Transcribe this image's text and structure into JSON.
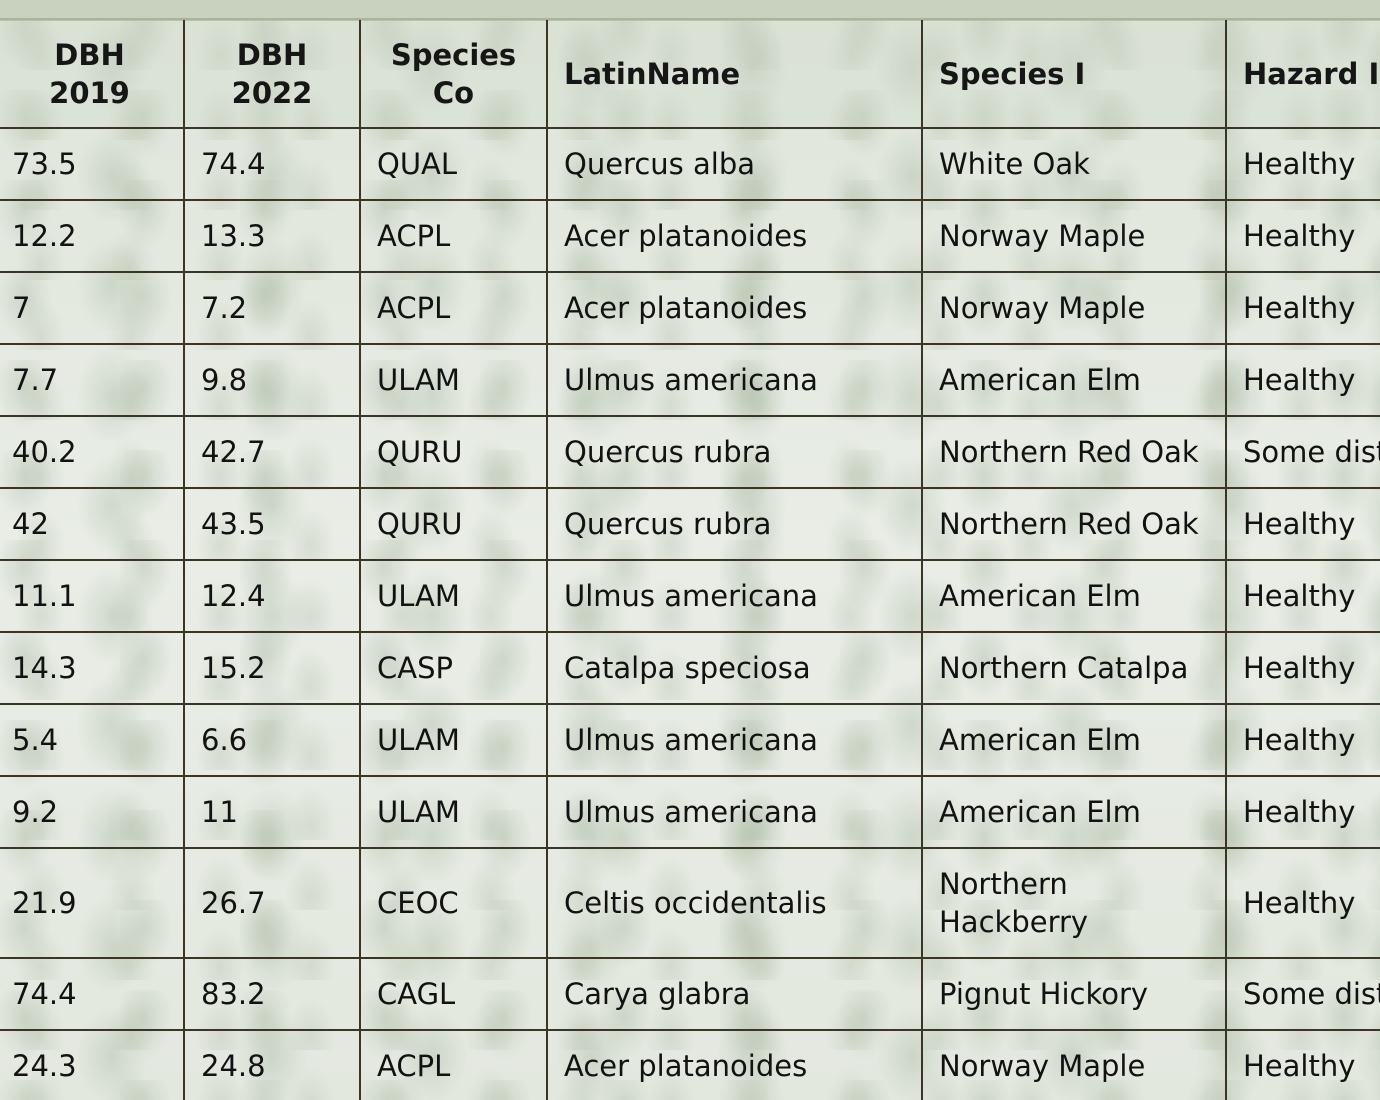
{
  "table": {
    "headers": [
      "DBH 2019",
      "DBH 2022",
      "Species Co",
      "LatinName",
      "Species I",
      "Hazard I"
    ],
    "rows": [
      [
        "73.5",
        "74.4",
        "QUAL",
        "Quercus alba",
        "White Oak",
        "Healthy"
      ],
      [
        "12.2",
        "13.3",
        "ACPL",
        "Acer platanoides",
        "Norway Maple",
        "Healthy"
      ],
      [
        "7",
        "7.2",
        "ACPL",
        "Acer platanoides",
        "Norway Maple",
        "Healthy"
      ],
      [
        "7.7",
        "9.8",
        "ULAM",
        "Ulmus americana",
        "American Elm",
        "Healthy"
      ],
      [
        "40.2",
        "42.7",
        "QURU",
        "Quercus rubra",
        "Northern Red Oak",
        "Some distr"
      ],
      [
        "42",
        "43.5",
        "QURU",
        "Quercus rubra",
        "Northern Red Oak",
        "Healthy"
      ],
      [
        "11.1",
        "12.4",
        "ULAM",
        "Ulmus americana",
        "American Elm",
        "Healthy"
      ],
      [
        "14.3",
        "15.2",
        "CASP",
        "Catalpa speciosa",
        "Northern Catalpa",
        "Healthy"
      ],
      [
        "5.4",
        "6.6",
        "ULAM",
        "Ulmus americana",
        "American Elm",
        "Healthy"
      ],
      [
        "9.2",
        "11",
        "ULAM",
        "Ulmus americana",
        "American Elm",
        "Healthy"
      ],
      [
        "21.9",
        "26.7",
        "CEOC",
        "Celtis occidentalis",
        "Northern Hackberry",
        "Healthy"
      ],
      [
        "74.4",
        "83.2",
        "CAGL",
        "Carya glabra",
        "Pignut Hickory",
        "Some distr"
      ],
      [
        "24.3",
        "24.8",
        "ACPL",
        "Acer platanoides",
        "Norway Maple",
        "Healthy"
      ]
    ]
  }
}
